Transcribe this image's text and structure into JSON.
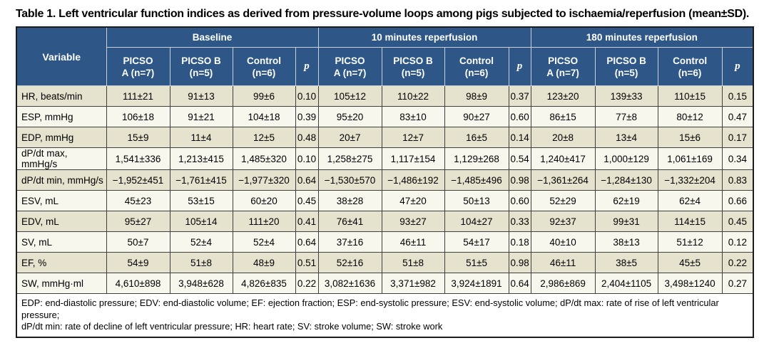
{
  "title": "Table 1. Left ventricular function indices as derived from pressure-volume loops among pigs subjected to ischaemia/reperfusion (mean±SD).",
  "table": {
    "variable_header": "Variable",
    "p_label": "p",
    "groups": [
      {
        "label": "Baseline",
        "columns": [
          "PICSO\nA (n=7)",
          "PICSO B\n(n=5)",
          "Control\n(n=6)"
        ]
      },
      {
        "label": "10 minutes reperfusion",
        "columns": [
          "PICSO\nA (n=7)",
          "PICSO B\n(n=5)",
          "Control\n(n=6)"
        ]
      },
      {
        "label": "180 minutes reperfusion",
        "columns": [
          "PICSO\nA (n=7)",
          "PICSO B\n(n=5)",
          "Control\n(n=6)"
        ]
      }
    ],
    "rows": [
      {
        "variable": "HR, beats/min",
        "values": [
          "111±21",
          "91±13",
          "99±6",
          "0.10",
          "105±12",
          "110±22",
          "98±9",
          "0.37",
          "123±20",
          "139±33",
          "110±15",
          "0.15"
        ]
      },
      {
        "variable": "ESP, mmHg",
        "values": [
          "106±18",
          "91±21",
          "104±18",
          "0.39",
          "95±20",
          "83±10",
          "90±27",
          "0.60",
          "86±15",
          "77±8",
          "80±12",
          "0.47"
        ]
      },
      {
        "variable": "EDP, mmHg",
        "values": [
          "15±9",
          "11±4",
          "12±5",
          "0.48",
          "20±7",
          "12±7",
          "16±5",
          "0.14",
          "20±8",
          "13±4",
          "15±6",
          "0.17"
        ]
      },
      {
        "variable": "dP/dt max, mmHg/s",
        "values": [
          "1,541±336",
          "1,213±415",
          "1,485±320",
          "0.10",
          "1,258±275",
          "1,117±154",
          "1,129±268",
          "0.54",
          "1,240±417",
          "1,000±129",
          "1,061±169",
          "0.34"
        ]
      },
      {
        "variable": "dP/dt min, mmHg/s",
        "values": [
          "−1,952±451",
          "−1,761±415",
          "−1,977±320",
          "0.64",
          "−1,530±570",
          "−1,486±192",
          "−1,485±496",
          "0.98",
          "−1,361±264",
          "−1,284±130",
          "−1,332±204",
          "0.83"
        ]
      },
      {
        "variable": "ESV, mL",
        "values": [
          "45±23",
          "53±15",
          "60±20",
          "0.45",
          "38±28",
          "47±20",
          "50±13",
          "0.60",
          "52±29",
          "62±19",
          "62±4",
          "0.66"
        ]
      },
      {
        "variable": "EDV, mL",
        "values": [
          "95±27",
          "105±14",
          "111±20",
          "0.41",
          "76±41",
          "93±27",
          "104±27",
          "0.33",
          "92±37",
          "99±31",
          "114±15",
          "0.45"
        ]
      },
      {
        "variable": "SV, mL",
        "values": [
          "50±7",
          "52±4",
          "52±4",
          "0.64",
          "37±16",
          "46±11",
          "54±17",
          "0.18",
          "40±10",
          "38±13",
          "51±12",
          "0.12"
        ]
      },
      {
        "variable": "EF, %",
        "values": [
          "54±9",
          "51±8",
          "48±9",
          "0.51",
          "52±16",
          "51±8",
          "51±5",
          "0.98",
          "46±11",
          "38±5",
          "45±5",
          "0.22"
        ]
      },
      {
        "variable": "SW, mmHg·ml",
        "values": [
          "4,610±898",
          "3,948±628",
          "4,826±835",
          "0.22",
          "3,082±1636",
          "3,371±982",
          "3,924±1891",
          "0.64",
          "2,986±869",
          "2,404±1105",
          "3,498±1240",
          "0.27"
        ]
      }
    ]
  },
  "footnote": "EDP: end-diastolic pressure; EDV: end-diastolic volume; EF: ejection fraction; ESP: end-systolic pressure; ESV: end-systolic volume; dP/dt max: rate of rise of left ventricular pressure;\ndP/dt min: rate of decline of left ventricular pressure; HR: heart rate; SV: stroke volume; SW: stroke work"
}
